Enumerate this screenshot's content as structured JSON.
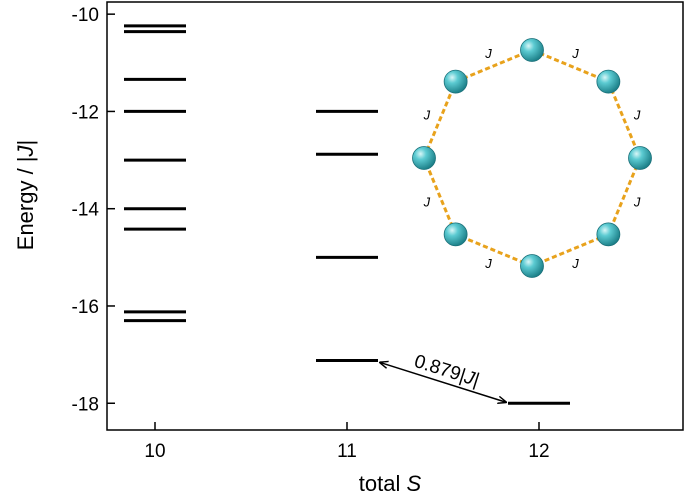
{
  "chart_data": {
    "type": "scatter",
    "xlabel": "total ",
    "xlabel_var": "S",
    "ylabel": "Energy / ",
    "ylabel_var": "J",
    "xlim": [
      9.75,
      12.75
    ],
    "ylim": [
      -18.55,
      -9.75
    ],
    "x_ticks": [
      10,
      11,
      12
    ],
    "x_tick_labels": [
      "10",
      "11",
      "12"
    ],
    "y_ticks": [
      -10,
      -12,
      -14,
      -16,
      -18
    ],
    "y_tick_labels": [
      "-10",
      "-12",
      "-14",
      "-16",
      "-18"
    ],
    "series": [
      {
        "x": 10,
        "values": [
          -10.24,
          -10.36,
          -11.34,
          -12.0,
          -13.0,
          -14.0,
          -14.42,
          -16.12,
          -16.3
        ]
      },
      {
        "x": 11,
        "values": [
          -12.0,
          -12.88,
          -15.0,
          -17.12
        ]
      },
      {
        "x": 12,
        "values": [
          -18.0
        ]
      }
    ],
    "annotation": {
      "text_pre": "0.879",
      "text_var": "J",
      "from": {
        "x": 11,
        "y": -17.12
      },
      "to": {
        "x": 12,
        "y": -18.0
      }
    },
    "inset": {
      "node_count": 8,
      "bond_label": "J",
      "node_color": "#3cb1b9",
      "bond_color": "#e8a21c"
    },
    "grid": false,
    "legend": "none"
  }
}
